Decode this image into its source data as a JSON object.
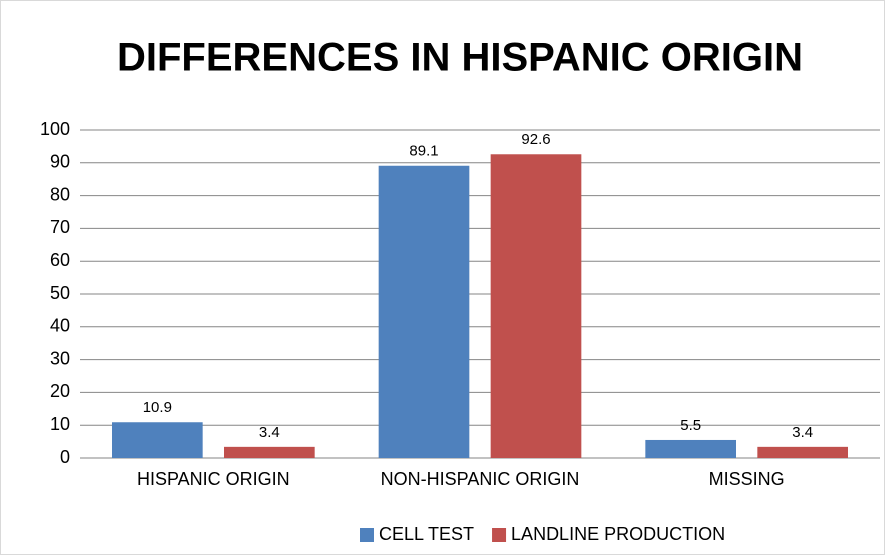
{
  "chart_data": {
    "type": "bar",
    "title": "DIFFERENCES IN HISPANIC ORIGIN",
    "categories": [
      "HISPANIC ORIGIN",
      "NON-HISPANIC ORIGIN",
      "MISSING"
    ],
    "series": [
      {
        "name": "CELL TEST",
        "color": "#4f81bd",
        "values": [
          10.9,
          89.1,
          5.5
        ]
      },
      {
        "name": "LANDLINE PRODUCTION",
        "color": "#c0504d",
        "values": [
          3.4,
          92.6,
          3.4
        ]
      }
    ],
    "ylim": [
      0,
      100
    ],
    "yticks": [
      0,
      10,
      20,
      30,
      40,
      50,
      60,
      70,
      80,
      90,
      100
    ],
    "grid": true,
    "legend": "bottom"
  }
}
